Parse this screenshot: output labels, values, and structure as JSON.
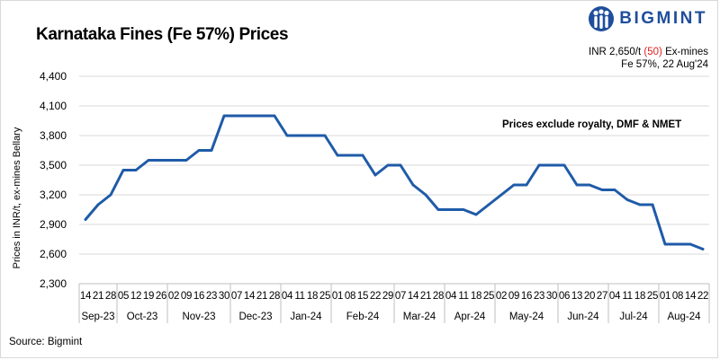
{
  "header": {
    "title": "Karnataka Fines (Fe 57%) Prices",
    "logo_text": "BIGMINT"
  },
  "price_note": {
    "price": "INR 2,650/t",
    "change": "(50)",
    "basis": "Ex-mines",
    "line2": "Fe 57%, 22 Aug'24"
  },
  "source": "Source: Bigmint",
  "colors": {
    "line": "#1f5ba8",
    "logo": "#1f4e9c",
    "negative_change": "#e02020",
    "grid": "#d9d9d9"
  },
  "chart_data": {
    "type": "line",
    "title": "Karnataka Fines (Fe 57%) Prices",
    "ylabel": "Prices in INR/t, ex-mines Bellary",
    "xlabel": "",
    "ylim": [
      2300,
      4400
    ],
    "yticks": [
      2300,
      2600,
      2900,
      3200,
      3500,
      3800,
      4100,
      4400
    ],
    "ytick_labels": [
      "2,300",
      "2,600",
      "2,900",
      "3,200",
      "3,500",
      "3,800",
      "4,100",
      "4,400"
    ],
    "grid": "horizontal",
    "annotation": "Prices exclude royalty, DMF & NMET",
    "x": [
      "14",
      "21",
      "28",
      "05",
      "12",
      "19",
      "26",
      "02",
      "09",
      "16",
      "23",
      "30",
      "07",
      "14",
      "21",
      "28",
      "04",
      "11",
      "18",
      "25",
      "01",
      "08",
      "15",
      "22",
      "29",
      "07",
      "14",
      "21",
      "28",
      "04",
      "11",
      "18",
      "25",
      "02",
      "09",
      "16",
      "23",
      "30",
      "06",
      "13",
      "20",
      "27",
      "04",
      "11",
      "18",
      "25",
      "01",
      "08",
      "14",
      "22"
    ],
    "months": [
      {
        "label": "Sep-23",
        "count": 3
      },
      {
        "label": "Oct-23",
        "count": 4
      },
      {
        "label": "Nov-23",
        "count": 5
      },
      {
        "label": "Dec-23",
        "count": 4
      },
      {
        "label": "Jan-24",
        "count": 4
      },
      {
        "label": "Feb-24",
        "count": 5
      },
      {
        "label": "Mar-24",
        "count": 4
      },
      {
        "label": "Apr-24",
        "count": 4
      },
      {
        "label": "May-24",
        "count": 5
      },
      {
        "label": "Jun-24",
        "count": 4
      },
      {
        "label": "Jul-24",
        "count": 4
      },
      {
        "label": "Aug-24",
        "count": 4
      }
    ],
    "series": [
      {
        "values": [
          2950,
          3100,
          3200,
          3450,
          3450,
          3550,
          3550,
          3550,
          3550,
          3650,
          3650,
          4000,
          4000,
          4000,
          4000,
          4000,
          3800,
          3800,
          3800,
          3800,
          3600,
          3600,
          3600,
          3400,
          3500,
          3500,
          3300,
          3200,
          3050,
          3050,
          3050,
          3000,
          3100,
          3200,
          3300,
          3300,
          3500,
          3500,
          3500,
          3300,
          3300,
          3250,
          3250,
          3150,
          3100,
          3100,
          2700,
          2700,
          2700,
          2650
        ]
      }
    ]
  }
}
